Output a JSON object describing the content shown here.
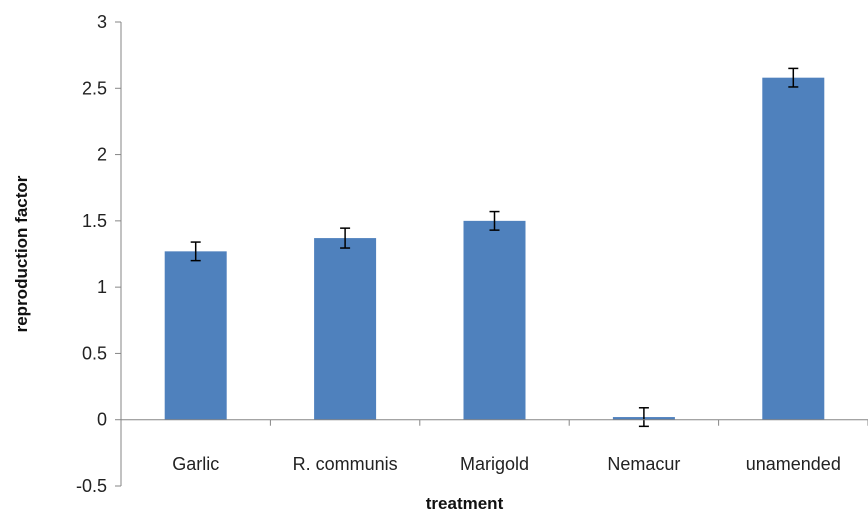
{
  "chart_data": {
    "type": "bar",
    "title": "",
    "xlabel": "treatment",
    "ylabel": "reproduction factor",
    "categories": [
      "Garlic",
      "R. communis",
      "Marigold",
      "Nemacur",
      "unamended"
    ],
    "values": [
      1.27,
      1.37,
      1.5,
      0.02,
      2.58
    ],
    "errors": [
      0.07,
      0.075,
      0.07,
      0.07,
      0.07
    ],
    "ylim": [
      -0.5,
      3
    ],
    "yticks": [
      -0.5,
      0,
      0.5,
      1,
      1.5,
      2,
      2.5,
      3
    ],
    "ytick_labels": [
      "-0.5",
      "0",
      "0.5",
      "1",
      "1.5",
      "2",
      "2.5",
      "3"
    ],
    "grid": false,
    "legend": "none",
    "bar_color": "#4F81BD"
  }
}
